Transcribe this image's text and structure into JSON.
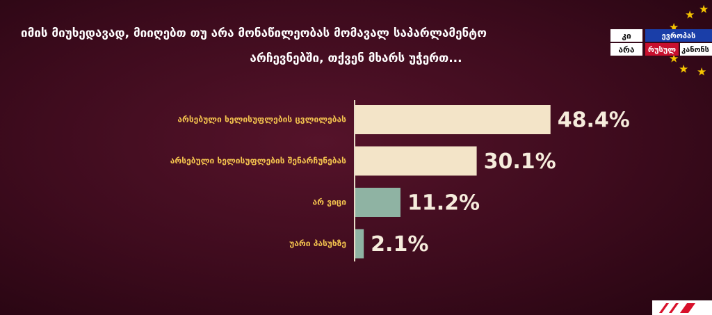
{
  "chart_data": {
    "type": "barh",
    "title": "იმის მიუხედავად, მიიღებთ თუ არა მონაწილეობას მომავალ საპარლამენტო არჩევნებში, თქვენ მხარს უჭერთ...",
    "categories": [
      "არსებული ხელისუფლების ცვლილებას",
      "არსებული ხელისუფლების შენარჩუნებას",
      "არ ვიცი",
      "უარი პასუხზე"
    ],
    "values": [
      48.4,
      30.1,
      11.2,
      2.1
    ],
    "value_labels": [
      "48.4%",
      "30.1%",
      "11.2%",
      "2.1%"
    ],
    "colors": [
      "#f3e4c8",
      "#f3e4c8",
      "#8fb3a3",
      "#8fb3a3"
    ],
    "xlim": [
      0,
      50
    ]
  },
  "logo": {
    "line1": [
      "კი",
      "ევროპას"
    ],
    "line2": [
      "არა",
      "რუსულ",
      "კანონს"
    ]
  }
}
